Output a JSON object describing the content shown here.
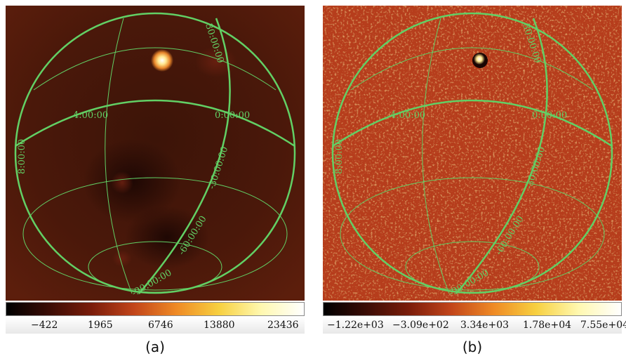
{
  "colors": {
    "grid_line": "#62d065",
    "map_a_background": "#3a1208",
    "map_b_background": "#b63c1a"
  },
  "colormap": [
    "#000000",
    "#3a0c05",
    "#7a1c0a",
    "#c2451a",
    "#ef8a25",
    "#f7d040",
    "#fff8b0",
    "#ffffff"
  ],
  "panels": [
    {
      "caption": "(a)",
      "colorbar_ticks": [
        "−422",
        "1965",
        "6746",
        "13880",
        "23436"
      ],
      "coordinate_labels": [
        "30:00:00",
        "4:00:00",
        "0:00:00",
        "8:00:00",
        "-30:00:00",
        "-60:00:00",
        "-90:00:00"
      ]
    },
    {
      "caption": "(b)",
      "colorbar_ticks": [
        "−1.22e+03",
        "−3.09e+02",
        "3.34e+03",
        "1.78e+04",
        "7.55e+04"
      ],
      "coordinate_labels": [
        "30:00:00",
        "4:00:00",
        "0:00:00",
        "8:00:00",
        "-30:00:00",
        "-60:00:00",
        "-90:00:00"
      ]
    }
  ]
}
